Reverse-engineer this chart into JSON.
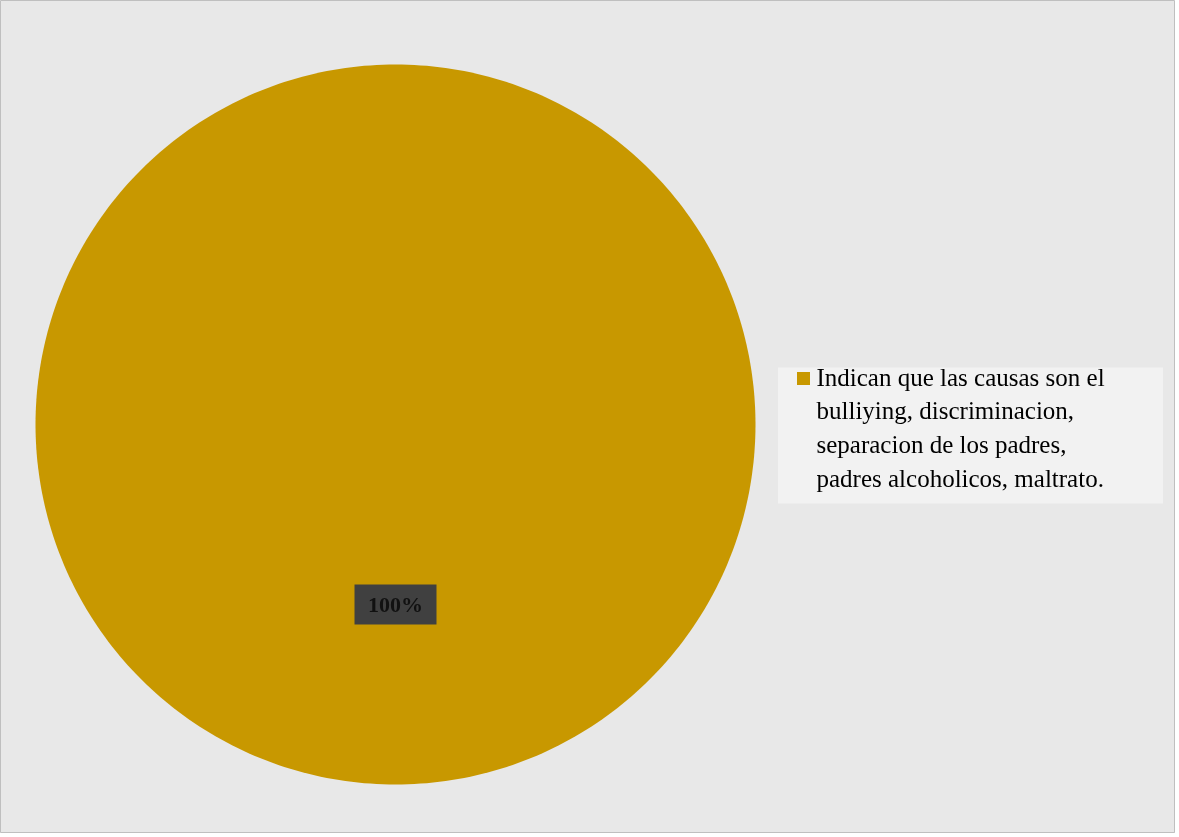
{
  "chart_data": {
    "type": "pie",
    "categories": [
      "Indican que las causas son el bulliying, discriminacion, separacion de los padres, padres alcoholicos, maltrato."
    ],
    "values": [
      100
    ],
    "colors": [
      "#c89800"
    ],
    "value_labels": [
      "100%"
    ],
    "legend": "right"
  }
}
